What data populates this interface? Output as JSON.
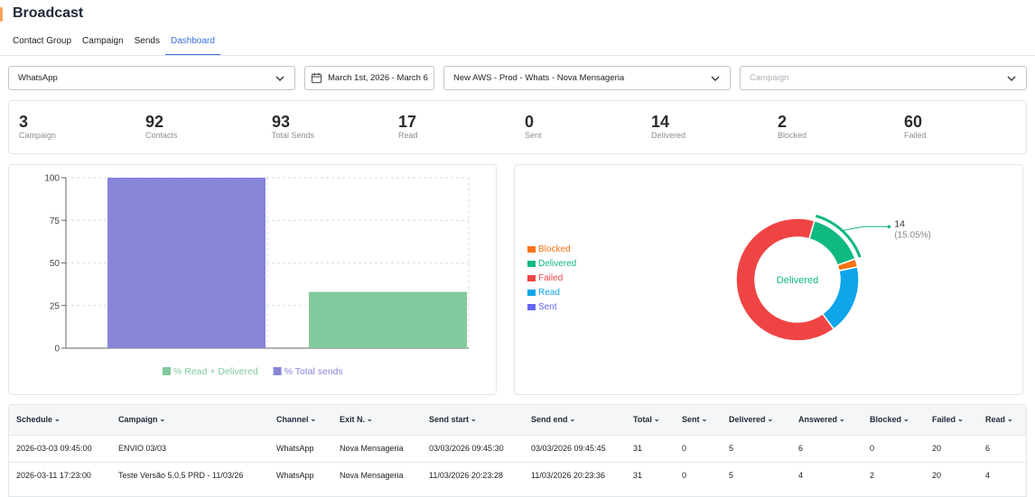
{
  "app": {
    "title": "Broadcast"
  },
  "tabs": [
    {
      "label": "Contact Group"
    },
    {
      "label": "Campaign"
    },
    {
      "label": "Sends"
    },
    {
      "label": "Dashboard",
      "active": true
    }
  ],
  "filters": {
    "channel": "WhatsApp",
    "date_range": "March 1st, 2026 - March 6",
    "account": "New AWS - Prod - Whats - Nova Mensageria",
    "campaign_placeholder": "Campaign"
  },
  "stats": [
    {
      "value": "3",
      "label": "Campaign"
    },
    {
      "value": "92",
      "label": "Contacts"
    },
    {
      "value": "93",
      "label": "Total Sends"
    },
    {
      "value": "17",
      "label": "Read"
    },
    {
      "value": "0",
      "label": "Sent"
    },
    {
      "value": "14",
      "label": "Delivered"
    },
    {
      "value": "2",
      "label": "Blocked"
    },
    {
      "value": "60",
      "label": "Failed"
    }
  ],
  "chart_data": [
    {
      "type": "bar",
      "categories": [
        "% Total sends",
        "% Read + Delivered"
      ],
      "values": [
        100,
        33
      ],
      "colors": [
        "#8884d8",
        "#82ca9d"
      ],
      "ylim": [
        0,
        100
      ],
      "yticks": [
        "0",
        "25",
        "50",
        "75",
        "100"
      ],
      "legend": [
        {
          "name": "% Read + Delivered",
          "color": "#82ca9d"
        },
        {
          "name": "% Total sends",
          "color": "#8884d8"
        }
      ],
      "grid": true,
      "legend_position": "bottom"
    },
    {
      "type": "pie",
      "slices": [
        {
          "name": "Blocked",
          "value": 2,
          "color": "#f97316"
        },
        {
          "name": "Delivered",
          "value": 14,
          "color": "#10b981"
        },
        {
          "name": "Failed",
          "value": 60,
          "color": "#ef4444"
        },
        {
          "name": "Read",
          "value": 17,
          "color": "#0ea5e9"
        },
        {
          "name": "Sent",
          "value": 0,
          "color": "#6366f1"
        }
      ],
      "active_label": "Delivered",
      "active_value": "14",
      "active_percent": "(15.05%)",
      "legend_position": "left"
    }
  ],
  "table": {
    "columns": [
      "Schedule",
      "Campaign",
      "Channel",
      "Exit N.",
      "Send start",
      "Send end",
      "Total",
      "Sent",
      "Delivered",
      "Answered",
      "Blocked",
      "Failed",
      "Read"
    ],
    "rows": [
      [
        "2026-03-03 09:45:00",
        "ENVIO 03/03",
        "WhatsApp",
        "Nova Mensageria",
        "03/03/2026 09:45:30",
        "03/03/2026 09:45:45",
        "31",
        "0",
        "5",
        "6",
        "0",
        "20",
        "6"
      ],
      [
        "2026-03-11 17:23:00",
        "Teste Versão 5.0.5 PRD - 11/03/26",
        "WhatsApp",
        "Nova Mensageria",
        "11/03/2026 20:23:28",
        "11/03/2026 20:23:36",
        "31",
        "0",
        "5",
        "4",
        "2",
        "20",
        "4"
      ]
    ]
  }
}
